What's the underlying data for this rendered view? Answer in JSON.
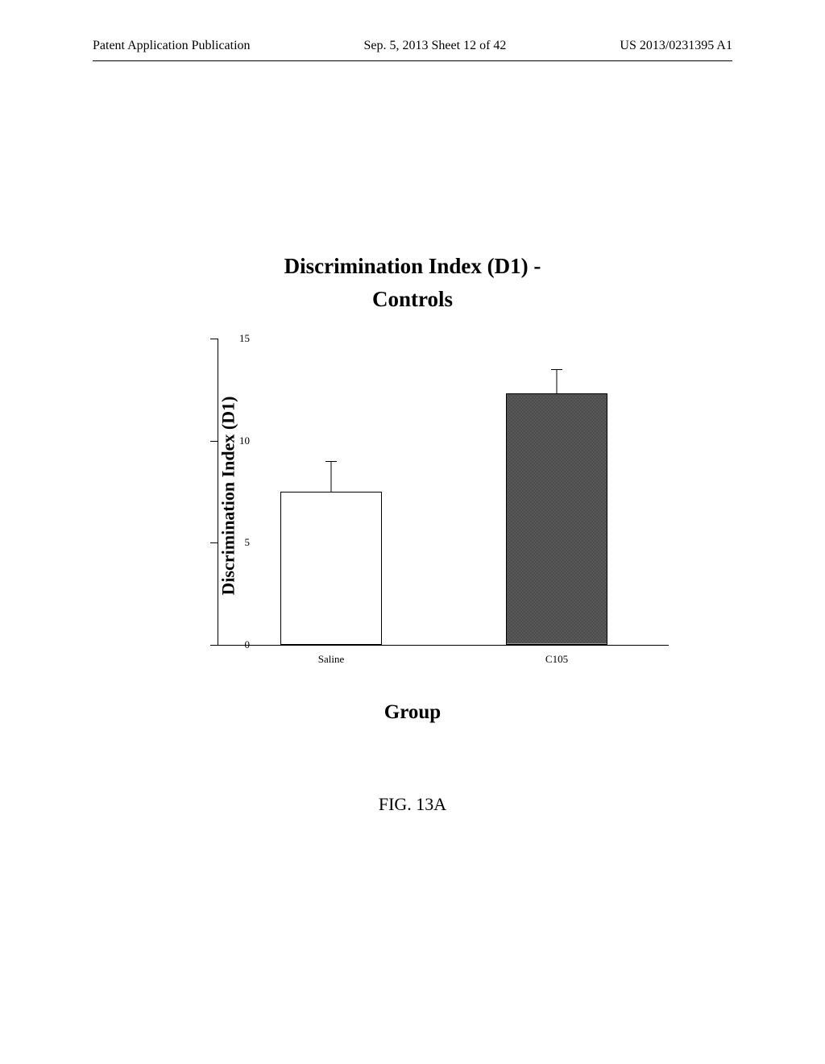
{
  "header": {
    "left": "Patent Application Publication",
    "center": "Sep. 5, 2013  Sheet 12 of 42",
    "right": "US 2013/0231395 A1"
  },
  "chart": {
    "type": "bar",
    "title_line1": "Discrimination Index (D1) -",
    "title_line2": "Controls",
    "ylabel": "Discrimination Index (D1)",
    "xlabel": "Group",
    "ylim": [
      0,
      15
    ],
    "ytick_step": 5,
    "yticks": [
      0,
      5,
      10,
      15
    ],
    "categories": [
      "Saline",
      "C105"
    ],
    "values": [
      7.5,
      12.3
    ],
    "errors": [
      1.5,
      1.2
    ],
    "bar_colors": [
      "#ffffff",
      "#5a5a5a"
    ],
    "bar_pattern": [
      "none",
      "crosshatch"
    ],
    "bar_width": 0.45,
    "background_color": "#ffffff",
    "axis_color": "#000000",
    "title_fontsize": 27,
    "label_fontsize": 22,
    "tick_fontsize": 13
  },
  "figure_label": "FIG. 13A"
}
